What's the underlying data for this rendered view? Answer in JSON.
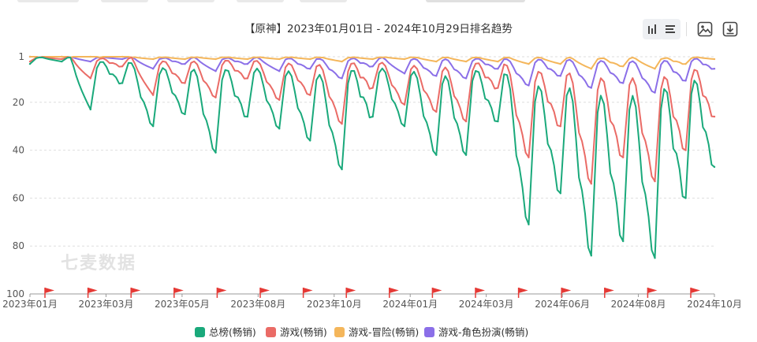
{
  "toolbar": {
    "icons": [
      "bar-chart-icon",
      "list-icon",
      "image-icon",
      "download-icon"
    ]
  },
  "chart_data": {
    "type": "line",
    "title": "【原神】2023年01月01日 - 2024年10月29日排名趋势",
    "xlabel": "",
    "ylabel": "",
    "y_inverted": true,
    "ylim": [
      100,
      1
    ],
    "yticks": [
      1,
      20,
      40,
      60,
      80,
      100
    ],
    "grid": "dashed-horizontal",
    "legend_position": "bottom",
    "watermark": "七麦数据",
    "x_start": "2023-01-01",
    "x_end": "2024-10-29",
    "xticks": [
      "2023年01月",
      "2023年03月",
      "2023年05月",
      "2023年08月",
      "2023年10月",
      "2024年01月",
      "2024年03月",
      "2024年06月",
      "2024年08月",
      "2024年10月"
    ],
    "event_flag_count": 16,
    "x": [
      "2023-01-01",
      "2023-02-01",
      "2023-03-01",
      "2023-04-01",
      "2023-05-01",
      "2023-06-01",
      "2023-07-01",
      "2023-08-01",
      "2023-09-01",
      "2023-10-01",
      "2023-11-01",
      "2023-12-01",
      "2024-01-01",
      "2024-02-01",
      "2024-03-01",
      "2024-04-01",
      "2024-05-01",
      "2024-06-01",
      "2024-07-01",
      "2024-08-01",
      "2024-09-01",
      "2024-10-01",
      "2024-10-29"
    ],
    "series": [
      {
        "name": "总榜(畅销)",
        "color": "#1aa97b",
        "values": [
          4,
          3,
          23,
          12,
          30,
          25,
          41,
          26,
          31,
          36,
          48,
          26,
          30,
          42,
          42,
          28,
          71,
          58,
          84,
          78,
          85,
          60,
          47
        ]
      },
      {
        "name": "游戏(畅销)",
        "color": "#ea6b66",
        "values": [
          3,
          2,
          10,
          5,
          17,
          12,
          18,
          10,
          19,
          17,
          29,
          14,
          21,
          24,
          28,
          14,
          43,
          30,
          54,
          43,
          53,
          40,
          26
        ]
      },
      {
        "name": "游戏-冒险(畅销)",
        "color": "#f4b65b",
        "values": [
          1,
          1,
          1,
          1,
          2,
          2,
          2,
          2,
          2,
          2,
          3,
          2,
          2,
          3,
          3,
          3,
          4,
          4,
          6,
          5,
          6,
          4,
          2
        ]
      },
      {
        "name": "游戏-角色扮演(畅销)",
        "color": "#8b6fe8",
        "values": [
          1,
          1,
          3,
          2,
          6,
          4,
          7,
          4,
          7,
          6,
          10,
          5,
          8,
          9,
          10,
          6,
          13,
          9,
          14,
          12,
          16,
          11,
          6
        ]
      }
    ]
  }
}
